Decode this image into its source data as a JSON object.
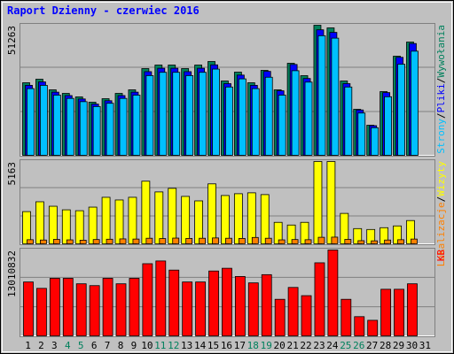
{
  "title": "Raport Dzienny -  czerwiec 2016",
  "chart_data": [
    {
      "type": "bar",
      "ylim": [
        0,
        51263
      ],
      "yticks": [
        51263
      ],
      "grid": true,
      "legend_separator": "/",
      "series": [
        {
          "name": "Wywołania",
          "color": "#00805c",
          "values": [
            28750,
            30130,
            25980,
            24590,
            23210,
            21130,
            22510,
            24590,
            25980,
            34290,
            35680,
            35680,
            34290,
            35680,
            37060,
            29440,
            32900,
            28750,
            33600,
            25980,
            36370,
            31520,
            51263,
            50220,
            29440,
            18360,
            12120,
            25290,
            39140,
            44680,
            null
          ]
        },
        {
          "name": "Pliki",
          "color": "#0000ff",
          "values": [
            27740,
            29080,
            25070,
            23730,
            22400,
            20390,
            21720,
            23730,
            25070,
            33090,
            34430,
            34430,
            33090,
            34430,
            35760,
            28410,
            31750,
            27740,
            33200,
            25600,
            35900,
            30420,
            49470,
            48460,
            28410,
            18100,
            11950,
            24900,
            38700,
            44100,
            null
          ]
        },
        {
          "name": "Strony",
          "color": "#00c0ff",
          "values": [
            26450,
            27720,
            23900,
            22620,
            21350,
            19440,
            20710,
            22620,
            23900,
            31550,
            32830,
            32830,
            31550,
            32830,
            34100,
            27080,
            30270,
            26450,
            30910,
            23900,
            33460,
            29000,
            47160,
            46200,
            27080,
            16890,
            11150,
            23270,
            36010,
            41110,
            null
          ]
        }
      ]
    },
    {
      "type": "bar",
      "ylim": [
        0,
        5163
      ],
      "yticks": [
        5163
      ],
      "grid": true,
      "legend_separator": "/",
      "series": [
        {
          "name": "Wizyty",
          "color": "#ffff00",
          "values": [
            2054,
            2665,
            2387,
            2165,
            2110,
            2332,
            2942,
            2776,
            2942,
            3942,
            3275,
            3497,
            2998,
            2720,
            3775,
            3053,
            3164,
            3220,
            3109,
            1388,
            1221,
            1388,
            5163,
            5163,
            1943,
            999,
            944,
            1055,
            1166,
            1499,
            null
          ]
        },
        {
          "name": "Lokalizacje",
          "color": "#ff8000",
          "values": [
            310,
            290,
            330,
            300,
            280,
            320,
            340,
            360,
            350,
            400,
            380,
            410,
            390,
            400,
            420,
            400,
            390,
            450,
            400,
            300,
            320,
            310,
            460,
            470,
            330,
            250,
            240,
            290,
            310,
            350,
            null
          ]
        }
      ]
    },
    {
      "type": "bar",
      "ylim": [
        0,
        13010832
      ],
      "yticks": [
        13010832
      ],
      "grid": true,
      "categories": [
        "1",
        "2",
        "3",
        "4",
        "5",
        "6",
        "7",
        "8",
        "9",
        "10",
        "11",
        "12",
        "13",
        "14",
        "15",
        "16",
        "17",
        "18",
        "19",
        "20",
        "21",
        "22",
        "23",
        "24",
        "25",
        "26",
        "27",
        "28",
        "29",
        "30",
        "31"
      ],
      "category_colors": [
        "#000000",
        "#000000",
        "#000000",
        "#00805c",
        "#00805c",
        "#000000",
        "#000000",
        "#000000",
        "#000000",
        "#000000",
        "#00805c",
        "#00805c",
        "#000000",
        "#000000",
        "#000000",
        "#000000",
        "#000000",
        "#00805c",
        "#00805c",
        "#000000",
        "#000000",
        "#000000",
        "#000000",
        "#000000",
        "#00805c",
        "#00805c",
        "#000000",
        "#000000",
        "#000000",
        "#000000",
        "#000000"
      ],
      "series": [
        {
          "name": "KB",
          "color": "#ff0000",
          "values": [
            8217000,
            7259000,
            8765000,
            8765000,
            7943000,
            7669000,
            8765000,
            7943000,
            8765000,
            10957000,
            11367000,
            9998000,
            8217000,
            8217000,
            9861000,
            10272000,
            9039000,
            8080000,
            9313000,
            5615000,
            7396000,
            6163000,
            11093000,
            13010832,
            5615000,
            3013000,
            2465000,
            7122000,
            7122000,
            7943000,
            null
          ]
        }
      ]
    }
  ]
}
